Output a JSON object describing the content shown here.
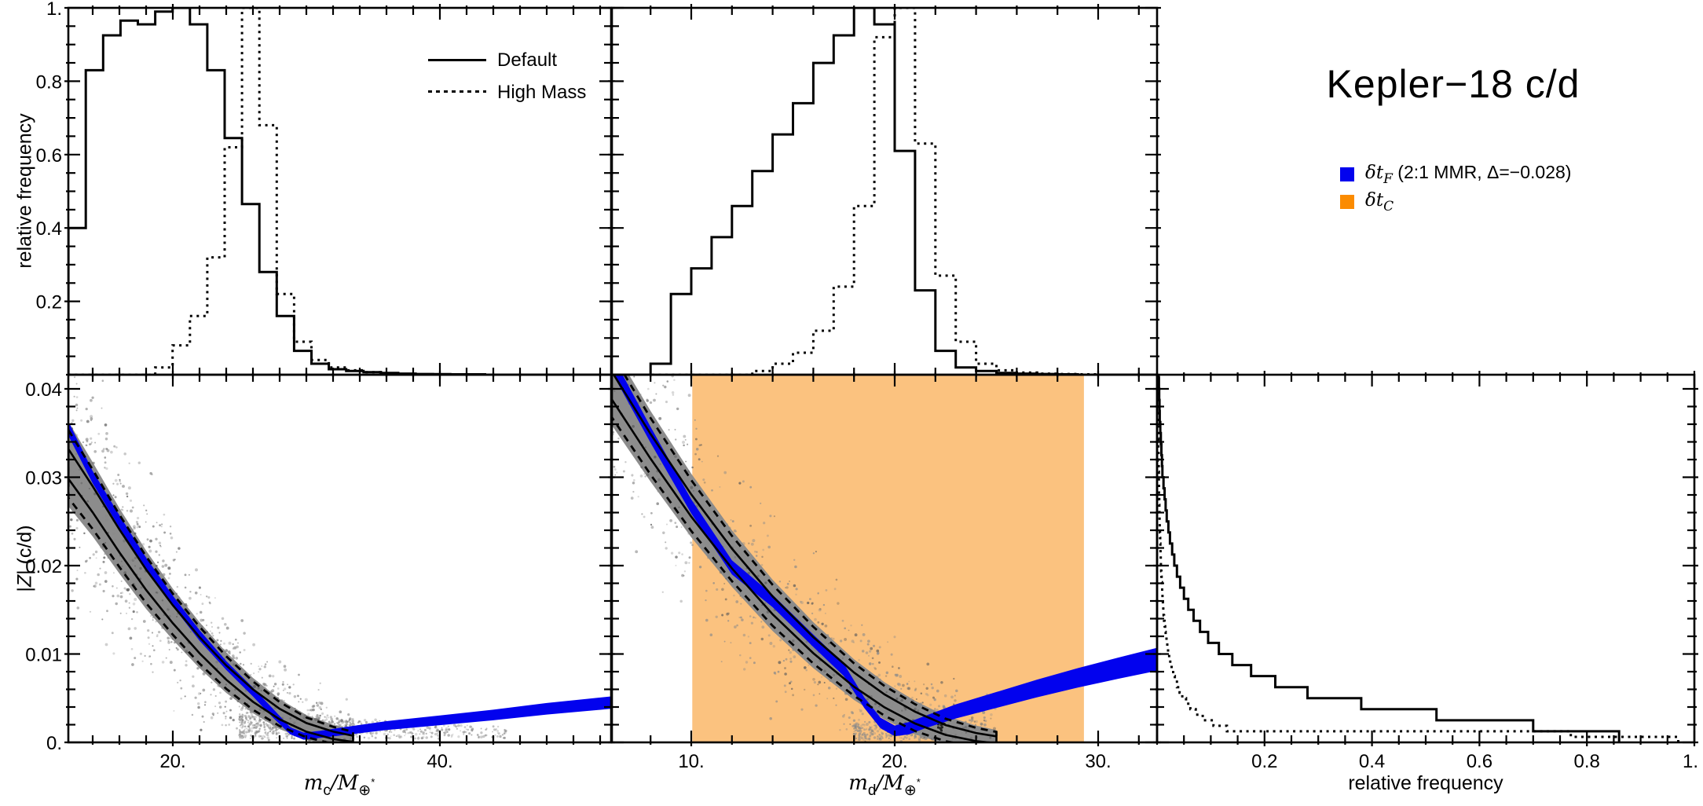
{
  "title": "Kepler−18 c/d",
  "colors": {
    "blue": "#0202EE",
    "orange_fill": "#FBC27F",
    "orange_legend": "#FB8B00",
    "gray": "#8C8C8C",
    "ink": "#000000"
  },
  "legend_styles": {
    "items": [
      {
        "label": "Default",
        "style": "solid"
      },
      {
        "label": "High Mass",
        "style": "dotted"
      }
    ]
  },
  "legend_signals": {
    "items": [
      {
        "prefix": "δt",
        "sub": "F",
        "suffix": " (2:1 MMR, Δ=−0.028)",
        "swatch": "blue"
      },
      {
        "prefix": "δt",
        "sub": "C",
        "suffix": "",
        "swatch": "orange"
      }
    ]
  },
  "labels": {
    "rel_freq_y": "relative frequency",
    "rel_freq_x": "relative frequency",
    "z_axis": {
      "pre": "|",
      "z": "Z",
      "post": "| (c/d)"
    },
    "mc": {
      "var": "m",
      "varsub": "c",
      "den": "/M",
      "densub": "⊕",
      "star": "*"
    },
    "md": {
      "var": "m",
      "varsub": "d",
      "den": "/M",
      "densub": "⊕",
      "star": "*"
    }
  },
  "chart_data": {
    "type": "multi-panel",
    "panels": {
      "top_left": {
        "type": "bar",
        "orientation": "vertical",
        "xlabel": "m_c/M_Earth*",
        "ylabel": "relative frequency",
        "bin_start": 12.18,
        "bin_width": 1.3,
        "xlim": [
          12.18,
          52.82
        ],
        "ylim": [
          0,
          1
        ],
        "xticks_major": [
          20,
          40
        ],
        "xtick_labels": [
          "20.",
          "40."
        ],
        "xticks_minor_step": 2,
        "yticks_major": [
          0.2,
          0.4,
          0.6,
          0.8,
          1.0
        ],
        "ytick_labels": [
          "0.2",
          "0.4",
          "0.6",
          "0.8",
          "1."
        ],
        "yticks_minor_step": 0.05,
        "series": [
          {
            "name": "Default",
            "style": "solid",
            "values": [
              0.4,
              0.83,
              0.925,
              0.965,
              0.955,
              0.99,
              1.0,
              0.955,
              0.83,
              0.645,
              0.465,
              0.28,
              0.16,
              0.065,
              0.03,
              0.015,
              0.01,
              0.007,
              0.005,
              0.003,
              0.002,
              0.0015,
              0.001,
              0.001
            ]
          },
          {
            "name": "High Mass",
            "style": "dotted",
            "values": [
              0,
              0,
              0,
              0,
              0,
              0.02,
              0.08,
              0.16,
              0.32,
              0.62,
              1.0,
              0.68,
              0.22,
              0.09,
              0.04,
              0.02,
              0.012,
              0.007,
              0.004,
              0.002,
              0.001,
              0,
              0,
              0
            ]
          }
        ]
      },
      "top_middle": {
        "type": "bar",
        "orientation": "vertical",
        "xlabel": "m_d/M_Earth*",
        "bin_start": 8.0,
        "bin_width": 1.0,
        "xlim": [
          6.06,
          32.9
        ],
        "ylim": [
          0,
          1
        ],
        "xticks_major": [
          10,
          20,
          30
        ],
        "xtick_labels": [
          "10.",
          "20.",
          "30."
        ],
        "xticks_minor_step": 2,
        "yticks_major": [
          0.2,
          0.4,
          0.6,
          0.8,
          1.0
        ],
        "yticks_minor_step": 0.05,
        "series": [
          {
            "name": "Default",
            "style": "solid",
            "values": [
              0.03,
              0.22,
              0.29,
              0.375,
              0.46,
              0.555,
              0.655,
              0.74,
              0.85,
              0.925,
              1.0,
              0.955,
              0.61,
              0.23,
              0.065,
              0.02,
              0.01,
              0.005,
              0.003,
              0.002,
              0.001,
              0,
              0,
              0
            ]
          },
          {
            "name": "High Mass",
            "style": "dotted",
            "values": [
              0,
              0,
              0,
              0,
              0,
              0.01,
              0.03,
              0.06,
              0.12,
              0.24,
              0.46,
              0.92,
              1.0,
              0.63,
              0.27,
              0.09,
              0.03,
              0.012,
              0.006,
              0.003,
              0.002,
              0.001,
              0,
              0
            ]
          }
        ]
      },
      "bottom_left": {
        "type": "scatter",
        "xlim": [
          12.18,
          52.82
        ],
        "ylim": [
          0,
          0.0416
        ],
        "yticks_major": [
          0,
          0.01,
          0.02,
          0.03,
          0.04
        ],
        "ytick_labels": [
          "0.",
          "0.01",
          "0.02",
          "0.03",
          "0.04"
        ],
        "yticks_minor_step": 0.002,
        "gray_band": [
          [
            12.18,
            0.0315,
            0.0048
          ],
          [
            14,
            0.0275,
            0.0042
          ],
          [
            16,
            0.0228,
            0.0037
          ],
          [
            18,
            0.0184,
            0.0033
          ],
          [
            20,
            0.0145,
            0.0029
          ],
          [
            22,
            0.011,
            0.0026
          ],
          [
            24,
            0.0079,
            0.0023
          ],
          [
            26,
            0.0053,
            0.002
          ],
          [
            28,
            0.0032,
            0.0017
          ],
          [
            30,
            0.0017,
            0.0014
          ],
          [
            32,
            0.0008,
            0.0012
          ],
          [
            33.5,
            0.0004,
            0.001
          ]
        ],
        "blue_band": [
          [
            12.18,
            0.0355,
            0.0008
          ],
          [
            14,
            0.03,
            0.0007
          ],
          [
            16,
            0.025,
            0.0007
          ],
          [
            18,
            0.0203,
            0.0006
          ],
          [
            20,
            0.016,
            0.0006
          ],
          [
            22,
            0.0121,
            0.0006
          ],
          [
            24,
            0.0087,
            0.0005
          ],
          [
            26,
            0.0057,
            0.0005
          ],
          [
            27.5,
            0.0033,
            0.0005
          ],
          [
            28.8,
            0.0013,
            0.0004
          ],
          [
            29.8,
            0.0007,
            0.0004
          ],
          [
            31,
            0.0009,
            0.0004
          ],
          [
            33,
            0.0013,
            0.00045
          ],
          [
            36,
            0.0019,
            0.0005
          ],
          [
            40,
            0.0025,
            0.00055
          ],
          [
            44,
            0.0031,
            0.0006
          ],
          [
            48,
            0.0038,
            0.00065
          ],
          [
            52.82,
            0.0045,
            0.0007
          ]
        ],
        "spray": {
          "v": [
            25,
            45
          ],
          "z": [
            0.0004,
            0.0034
          ],
          "count": 650
        },
        "contour_outer": {
          "factor": 0.8,
          "style": "dashed"
        },
        "contour_inner": {
          "factor": 0.35,
          "style": "solid"
        }
      },
      "bottom_middle": {
        "type": "scatter",
        "xlim": [
          6.06,
          32.9
        ],
        "ylim": [
          0,
          0.0416
        ],
        "orange_region": [
          10.05,
          29.3
        ],
        "gray_band": [
          [
            6.06,
            0.0405,
            0.0045
          ],
          [
            8,
            0.0335,
            0.004
          ],
          [
            10,
            0.0268,
            0.0036
          ],
          [
            12,
            0.0208,
            0.0032
          ],
          [
            14,
            0.0155,
            0.0029
          ],
          [
            16,
            0.011,
            0.0026
          ],
          [
            18,
            0.0071,
            0.0023
          ],
          [
            19.5,
            0.0047,
            0.0021
          ],
          [
            21,
            0.0028,
            0.0019
          ],
          [
            22.5,
            0.0014,
            0.0016
          ],
          [
            24,
            0.0006,
            0.0013
          ],
          [
            25,
            0.0003,
            0.0011
          ]
        ],
        "blue_band": [
          [
            6.06,
            0.043,
            0.001
          ],
          [
            8,
            0.0348,
            0.0009
          ],
          [
            10,
            0.0267,
            0.0008
          ],
          [
            12,
            0.0198,
            0.0008
          ],
          [
            14,
            0.016,
            0.0007
          ],
          [
            16,
            0.0115,
            0.0007
          ],
          [
            17.5,
            0.0082,
            0.0007
          ],
          [
            18.5,
            0.0045,
            0.0006
          ],
          [
            19.3,
            0.0022,
            0.0006
          ],
          [
            20,
            0.0013,
            0.0006
          ],
          [
            20.7,
            0.0016,
            0.0007
          ],
          [
            21.5,
            0.0023,
            0.0007
          ],
          [
            23,
            0.0035,
            0.0008
          ],
          [
            25,
            0.0048,
            0.0009
          ],
          [
            27,
            0.0061,
            0.001
          ],
          [
            29,
            0.0073,
            0.0011
          ],
          [
            31,
            0.0084,
            0.0012
          ],
          [
            32.9,
            0.0094,
            0.0013
          ]
        ],
        "spray": {
          "v": [
            18,
            23.2
          ],
          "z": [
            0.0003,
            0.0022
          ],
          "count": 260
        },
        "blob": [
          22.3,
          0.002
        ],
        "contour_outer": {
          "factor": 0.8,
          "style": "dashed"
        },
        "contour_inner": {
          "factor": 0.35,
          "style": "solid"
        }
      },
      "bottom_right": {
        "type": "bar",
        "orientation": "horizontal",
        "xlabel": "relative frequency",
        "xlim": [
          0,
          1
        ],
        "ylim": [
          0,
          0.0416
        ],
        "xticks_major": [
          0.2,
          0.4,
          0.6,
          0.8,
          1.0
        ],
        "xtick_labels": [
          "0.2",
          "0.4",
          "0.6",
          "0.8",
          "1."
        ],
        "xticks_minor_step": 0.05,
        "series": [
          {
            "name": "Default",
            "style": "solid",
            "bin_width": 0.00125,
            "values": [
              0.86,
              0.7,
              0.52,
              0.38,
              0.28,
              0.22,
              0.175,
              0.14,
              0.115,
              0.095,
              0.08,
              0.068,
              0.058,
              0.05,
              0.043,
              0.037,
              0.032,
              0.028,
              0.024,
              0.021,
              0.018,
              0.016,
              0.014,
              0.012,
              0.01,
              0.009,
              0.008,
              0.007,
              0.006,
              0.005,
              0.0045,
              0.004,
              0.0035,
              0.003
            ]
          },
          {
            "name": "High Mass",
            "style": "dotted",
            "bin_width": 0.000625,
            "values": [
              0.97,
              0.77,
              0.13,
              0.105,
              0.085,
              0.072,
              0.062,
              0.054,
              0.047,
              0.042,
              0.037,
              0.033,
              0.03,
              0.027,
              0.0245,
              0.0225,
              0.0205,
              0.019,
              0.0175,
              0.016,
              0.015,
              0.014,
              0.013,
              0.0122,
              0.0115,
              0.0108,
              0.0101,
              0.0095,
              0.009,
              0.0085,
              0.008,
              0.0076,
              0.0072,
              0.0068,
              0.0064,
              0.0061,
              0.0058,
              0.0055,
              0.0052,
              0.005,
              0.0047,
              0.0045,
              0.0043,
              0.0041,
              0.0039,
              0.0037,
              0.0036,
              0.0034,
              0.0033,
              0.0031,
              0.003,
              0.0029,
              0.0028,
              0.0027,
              0.0026,
              0.0025,
              0.0024,
              0.0023,
              0.0022,
              0.0021,
              0.002,
              0.002,
              0.0019,
              0.0018,
              0.0018,
              0.0017,
              0.0017,
              0.0016
            ]
          }
        ]
      }
    }
  }
}
